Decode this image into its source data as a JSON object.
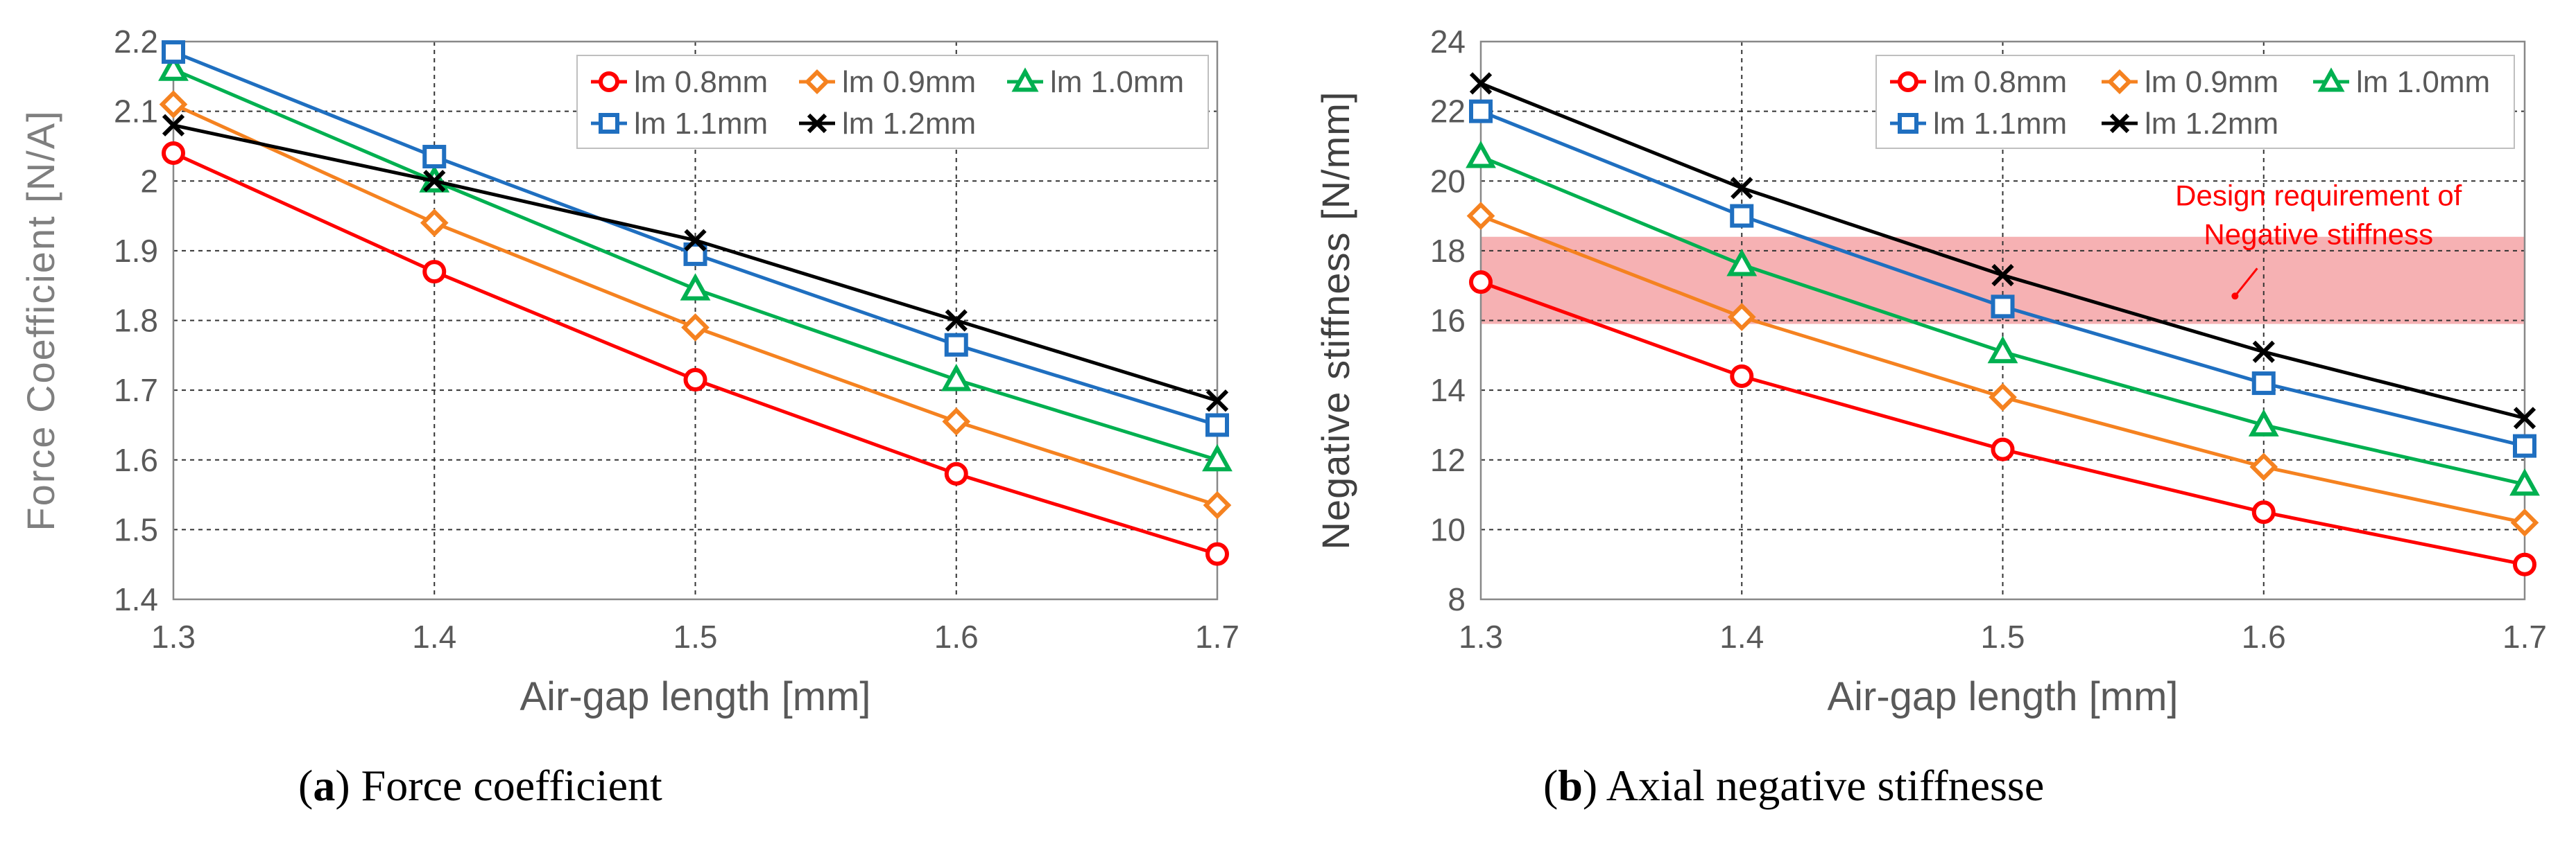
{
  "chart_data": [
    {
      "type": "line",
      "ylabel": "Force Coefficient [N/A]",
      "xlabel": "Air-gap length [mm]",
      "caption": {
        "letter": "a",
        "text": "Force coefficient"
      },
      "x": [
        1.3,
        1.4,
        1.5,
        1.6,
        1.7
      ],
      "x_tick_labels": [
        "1.3",
        "1.4",
        "1.5",
        "1.6",
        "1.7"
      ],
      "xlim": [
        1.3,
        1.7
      ],
      "ylim": [
        1.4,
        2.2
      ],
      "y_ticks": [
        1.4,
        1.5,
        1.6,
        1.7,
        1.8,
        1.9,
        2.0,
        2.1,
        2.2
      ],
      "y_tick_labels": [
        "1.4",
        "1.5",
        "1.6",
        "1.7",
        "1.8",
        "1.9",
        "2",
        "2.1",
        "2.2"
      ],
      "grid": "dashed",
      "legend_position": "top-right",
      "series": [
        {
          "name": "lm 0.8mm",
          "color": "#ff0000",
          "marker": "circle",
          "values": [
            2.04,
            1.87,
            1.715,
            1.58,
            1.465
          ]
        },
        {
          "name": "lm 0.9mm",
          "color": "#f58220",
          "marker": "diamond",
          "values": [
            2.11,
            1.94,
            1.79,
            1.655,
            1.535
          ]
        },
        {
          "name": "lm 1.0mm",
          "color": "#00b050",
          "marker": "triangle",
          "values": [
            2.16,
            2.0,
            1.845,
            1.715,
            1.6
          ]
        },
        {
          "name": "lm 1.1mm",
          "color": "#1f6fc0",
          "marker": "square",
          "values": [
            2.185,
            2.035,
            1.895,
            1.765,
            1.65
          ]
        },
        {
          "name": "lm 1.2mm",
          "color": "#000000",
          "marker": "cross",
          "values": [
            2.08,
            2.0,
            1.915,
            1.8,
            1.685
          ]
        }
      ]
    },
    {
      "type": "line",
      "ylabel": "Negative stiffness [N/mm]",
      "xlabel": "Air-gap length [mm]",
      "caption": {
        "letter": "b",
        "text": "Axial negative stiffnesse"
      },
      "x": [
        1.3,
        1.4,
        1.5,
        1.6,
        1.7
      ],
      "x_tick_labels": [
        "1.3",
        "1.4",
        "1.5",
        "1.6",
        "1.7"
      ],
      "xlim": [
        1.3,
        1.7
      ],
      "ylim": [
        8,
        24
      ],
      "y_ticks": [
        8,
        10,
        12,
        14,
        16,
        18,
        20,
        22,
        24
      ],
      "y_tick_labels": [
        "8",
        "10",
        "12",
        "14",
        "16",
        "18",
        "20",
        "22",
        "24"
      ],
      "grid": "dashed",
      "legend_position": "top-right",
      "band": {
        "ymin": 15.9,
        "ymax": 18.4,
        "color": "#f4a3a6"
      },
      "annotation": {
        "lines": [
          "Design requirement of",
          "Negative stiffness"
        ],
        "color": "#ff0000",
        "point": [
          1.589,
          16.7
        ]
      },
      "series": [
        {
          "name": "lm 0.8mm",
          "color": "#ff0000",
          "marker": "circle",
          "values": [
            17.1,
            14.4,
            12.3,
            10.5,
            9.0
          ]
        },
        {
          "name": "lm 0.9mm",
          "color": "#f58220",
          "marker": "diamond",
          "values": [
            19.0,
            16.1,
            13.8,
            11.8,
            10.2
          ]
        },
        {
          "name": "lm 1.0mm",
          "color": "#00b050",
          "marker": "triangle",
          "values": [
            20.7,
            17.6,
            15.1,
            13.0,
            11.3
          ]
        },
        {
          "name": "lm 1.1mm",
          "color": "#1f6fc0",
          "marker": "square",
          "values": [
            22.0,
            19.0,
            16.4,
            14.2,
            12.4
          ]
        },
        {
          "name": "lm 1.2mm",
          "color": "#000000",
          "marker": "cross",
          "values": [
            22.8,
            19.8,
            17.3,
            15.1,
            13.2
          ]
        }
      ]
    }
  ]
}
